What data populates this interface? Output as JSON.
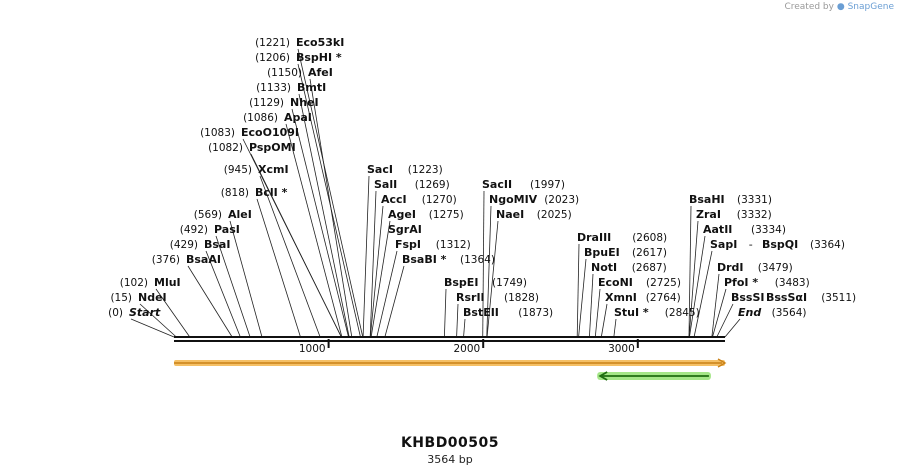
{
  "credit": {
    "prefix": "Created by",
    "brand": "SnapGene"
  },
  "plasmid": {
    "name": "KHBD00505",
    "length_label": "3564 bp",
    "length": 3564
  },
  "colors": {
    "backbone": "#111111",
    "feature_fill": "#f3b54a",
    "feature_edge": "#c98118",
    "reverse_fill": "#8ee06a",
    "reverse_arrow": "#1f6d10"
  },
  "ruler": [
    {
      "pos": 1000,
      "label": "1000"
    },
    {
      "pos": 2000,
      "label": "2000"
    },
    {
      "pos": 3000,
      "label": "3000"
    }
  ],
  "features": [
    {
      "name": "orange-feature",
      "start": 0,
      "end": 3564,
      "direction": "forward"
    },
    {
      "name": "green-feature",
      "start": 2750,
      "end": 3460,
      "direction": "reverse"
    }
  ],
  "sites": [
    {
      "name": "Eco53kI",
      "pos": 1221,
      "pos_label": "(1221)",
      "star": false,
      "italic": false
    },
    {
      "name": "BspHI",
      "pos": 1206,
      "pos_label": "(1206)",
      "star": true,
      "italic": false
    },
    {
      "name": "AfeI",
      "pos": 1150,
      "pos_label": "(1150)",
      "star": false,
      "italic": false
    },
    {
      "name": "BmtI",
      "pos": 1133,
      "pos_label": "(1133)",
      "star": false,
      "italic": false
    },
    {
      "name": "NheI",
      "pos": 1129,
      "pos_label": "(1129)",
      "star": false,
      "italic": false
    },
    {
      "name": "ApaI",
      "pos": 1086,
      "pos_label": "(1086)",
      "star": false,
      "italic": false
    },
    {
      "name": "EcoO109I",
      "pos": 1083,
      "pos_label": "(1083)",
      "star": false,
      "italic": false
    },
    {
      "name": "PspOMI",
      "pos": 1082,
      "pos_label": "(1082)",
      "star": false,
      "italic": false
    },
    {
      "name": "XcmI",
      "pos": 945,
      "pos_label": "(945)",
      "star": false,
      "italic": false
    },
    {
      "name": "BclI",
      "pos": 818,
      "pos_label": "(818)",
      "star": true,
      "italic": false
    },
    {
      "name": "AleI",
      "pos": 569,
      "pos_label": "(569)",
      "star": false,
      "italic": false
    },
    {
      "name": "PasI",
      "pos": 492,
      "pos_label": "(492)",
      "star": false,
      "italic": false
    },
    {
      "name": "BsaI",
      "pos": 429,
      "pos_label": "(429)",
      "star": false,
      "italic": false
    },
    {
      "name": "BsaAI",
      "pos": 376,
      "pos_label": "(376)",
      "star": false,
      "italic": false
    },
    {
      "name": "MluI",
      "pos": 102,
      "pos_label": "(102)",
      "star": false,
      "italic": false
    },
    {
      "name": "NdeI",
      "pos": 15,
      "pos_label": "(15)",
      "star": false,
      "italic": false
    },
    {
      "name": "Start",
      "pos": 0,
      "pos_label": "(0)",
      "star": false,
      "italic": true
    },
    {
      "name": "SacI",
      "pos": 1223,
      "pos_label": "(1223)",
      "star": false,
      "italic": false
    },
    {
      "name": "SalI",
      "pos": 1269,
      "pos_label": "(1269)",
      "star": false,
      "italic": false
    },
    {
      "name": "AccI",
      "pos": 1270,
      "pos_label": "(1270)",
      "star": false,
      "italic": false
    },
    {
      "name": "AgeI",
      "pos": 1275,
      "pos_label": "(1275)",
      "star": false,
      "italic": false
    },
    {
      "name": "SgrAI",
      "pos": 1275,
      "pos_label": "",
      "star": false,
      "italic": false
    },
    {
      "name": "FspI",
      "pos": 1312,
      "pos_label": "(1312)",
      "star": false,
      "italic": false
    },
    {
      "name": "BsaBI",
      "pos": 1364,
      "pos_label": "(1364)",
      "star": true,
      "italic": false
    },
    {
      "name": "SacII",
      "pos": 1997,
      "pos_label": "(1997)",
      "star": false,
      "italic": false
    },
    {
      "name": "NgoMIV",
      "pos": 2023,
      "pos_label": "(2023)",
      "star": false,
      "italic": false
    },
    {
      "name": "NaeI",
      "pos": 2025,
      "pos_label": "(2025)",
      "star": false,
      "italic": false
    },
    {
      "name": "BspEI",
      "pos": 1749,
      "pos_label": "(1749)",
      "star": false,
      "italic": false
    },
    {
      "name": "RsrII",
      "pos": 1828,
      "pos_label": "(1828)",
      "star": false,
      "italic": false
    },
    {
      "name": "BstEII",
      "pos": 1873,
      "pos_label": "(1873)",
      "star": false,
      "italic": false
    },
    {
      "name": "DraIII",
      "pos": 2608,
      "pos_label": "(2608)",
      "star": false,
      "italic": false
    },
    {
      "name": "BpuEI",
      "pos": 2617,
      "pos_label": "(2617)",
      "star": false,
      "italic": false
    },
    {
      "name": "NotI",
      "pos": 2687,
      "pos_label": "(2687)",
      "star": false,
      "italic": false
    },
    {
      "name": "EcoNI",
      "pos": 2725,
      "pos_label": "(2725)",
      "star": false,
      "italic": false
    },
    {
      "name": "XmnI",
      "pos": 2764,
      "pos_label": "(2764)",
      "star": false,
      "italic": false
    },
    {
      "name": "StuI",
      "pos": 2845,
      "pos_label": "(2845)",
      "star": true,
      "italic": false
    },
    {
      "name": "BsaHI",
      "pos": 3331,
      "pos_label": "(3331)",
      "star": false,
      "italic": false
    },
    {
      "name": "ZraI",
      "pos": 3332,
      "pos_label": "(3332)",
      "star": false,
      "italic": false
    },
    {
      "name": "AatII",
      "pos": 3334,
      "pos_label": "(3334)",
      "star": false,
      "italic": false
    },
    {
      "name": "SapI",
      "pos": 3364,
      "pos_label": "",
      "star": false,
      "italic": false,
      "pair": "BspQI"
    },
    {
      "name": "BspQI",
      "pos": 3364,
      "pos_label": "(3364)",
      "star": false,
      "italic": false
    },
    {
      "name": "DrdI",
      "pos": 3479,
      "pos_label": "(3479)",
      "star": false,
      "italic": false
    },
    {
      "name": "PfoI",
      "pos": 3483,
      "pos_label": "(3483)",
      "star": true,
      "italic": false
    },
    {
      "name": "BssSI",
      "pos": 3511,
      "pos_label": "",
      "star": false,
      "italic": false,
      "pair": "BssSαI"
    },
    {
      "name": "BssSαI",
      "pos": 3511,
      "pos_label": "(3511)",
      "star": false,
      "italic": false
    },
    {
      "name": "End",
      "pos": 3564,
      "pos_label": "(3564)",
      "star": false,
      "italic": true
    }
  ]
}
